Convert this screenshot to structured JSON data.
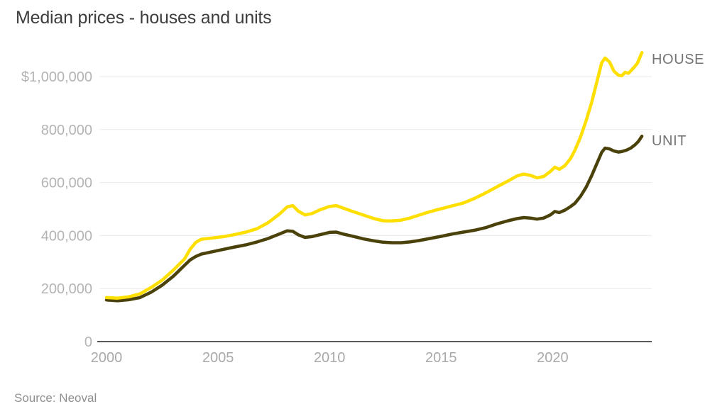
{
  "title": "Median prices - houses and units",
  "source": "Source: Neoval",
  "colors": {
    "house_line": "#ffdf00",
    "unit_line": "#4a420a",
    "grid": "#e9e9e9",
    "axis": "#59595b",
    "y_tick_label": "#b4b4b4",
    "x_tick_label": "#a9a9a9",
    "series_label": "#747474",
    "title_text": "#3d3d3d",
    "source_text": "#8f8f8f",
    "background": "#ffffff"
  },
  "chart_data": {
    "type": "line",
    "title": "Median prices - houses and units",
    "xlabel": "",
    "ylabel": "",
    "grid": "horizontal",
    "legend_position": "right-end-labels",
    "xlim": [
      1999.8,
      2024.5
    ],
    "ylim": [
      0,
      1100000
    ],
    "x_ticks": [
      2000,
      2005,
      2010,
      2015,
      2020
    ],
    "y_ticks": [
      {
        "value": 0,
        "label": "0"
      },
      {
        "value": 200000,
        "label": "200,000"
      },
      {
        "value": 400000,
        "label": "400,000"
      },
      {
        "value": 600000,
        "label": "600,000"
      },
      {
        "value": 800000,
        "label": "800,000"
      },
      {
        "value": 1000000,
        "label": "$1,000,000"
      }
    ],
    "series": [
      {
        "name": "HOUSE",
        "color": "#ffdf00",
        "points": [
          [
            2000.0,
            166000
          ],
          [
            2000.5,
            164000
          ],
          [
            2001.0,
            169000
          ],
          [
            2001.5,
            180000
          ],
          [
            2002.0,
            204000
          ],
          [
            2002.5,
            232000
          ],
          [
            2003.0,
            270000
          ],
          [
            2003.5,
            312000
          ],
          [
            2003.75,
            348000
          ],
          [
            2004.0,
            374000
          ],
          [
            2004.25,
            386000
          ],
          [
            2004.75,
            391000
          ],
          [
            2005.25,
            396000
          ],
          [
            2005.75,
            404000
          ],
          [
            2006.25,
            413000
          ],
          [
            2006.75,
            426000
          ],
          [
            2007.25,
            449000
          ],
          [
            2007.75,
            481000
          ],
          [
            2008.1,
            508000
          ],
          [
            2008.35,
            513000
          ],
          [
            2008.6,
            492000
          ],
          [
            2008.9,
            478000
          ],
          [
            2009.2,
            483000
          ],
          [
            2009.6,
            498000
          ],
          [
            2010.0,
            510000
          ],
          [
            2010.3,
            513000
          ],
          [
            2010.6,
            504000
          ],
          [
            2011.0,
            492000
          ],
          [
            2011.5,
            478000
          ],
          [
            2012.0,
            464000
          ],
          [
            2012.4,
            456000
          ],
          [
            2012.8,
            455000
          ],
          [
            2013.2,
            458000
          ],
          [
            2013.6,
            466000
          ],
          [
            2014.0,
            477000
          ],
          [
            2014.5,
            490000
          ],
          [
            2015.0,
            501000
          ],
          [
            2015.5,
            512000
          ],
          [
            2016.0,
            523000
          ],
          [
            2016.5,
            540000
          ],
          [
            2017.0,
            561000
          ],
          [
            2017.5,
            584000
          ],
          [
            2018.0,
            606000
          ],
          [
            2018.4,
            625000
          ],
          [
            2018.7,
            632000
          ],
          [
            2019.0,
            627000
          ],
          [
            2019.3,
            618000
          ],
          [
            2019.6,
            623000
          ],
          [
            2019.9,
            642000
          ],
          [
            2020.1,
            658000
          ],
          [
            2020.3,
            650000
          ],
          [
            2020.55,
            664000
          ],
          [
            2020.8,
            690000
          ],
          [
            2021.0,
            722000
          ],
          [
            2021.25,
            772000
          ],
          [
            2021.5,
            833000
          ],
          [
            2021.75,
            903000
          ],
          [
            2022.0,
            985000
          ],
          [
            2022.2,
            1052000
          ],
          [
            2022.35,
            1070000
          ],
          [
            2022.55,
            1055000
          ],
          [
            2022.75,
            1020000
          ],
          [
            2022.95,
            1005000
          ],
          [
            2023.1,
            1003000
          ],
          [
            2023.25,
            1016000
          ],
          [
            2023.4,
            1012000
          ],
          [
            2023.6,
            1030000
          ],
          [
            2023.8,
            1050000
          ],
          [
            2024.0,
            1090000
          ]
        ]
      },
      {
        "name": "UNIT",
        "color": "#4a420a",
        "points": [
          [
            2000.0,
            157000
          ],
          [
            2000.5,
            154000
          ],
          [
            2001.0,
            158000
          ],
          [
            2001.5,
            166000
          ],
          [
            2002.0,
            186000
          ],
          [
            2002.5,
            213000
          ],
          [
            2003.0,
            247000
          ],
          [
            2003.5,
            288000
          ],
          [
            2003.75,
            308000
          ],
          [
            2004.0,
            321000
          ],
          [
            2004.25,
            330000
          ],
          [
            2004.75,
            339000
          ],
          [
            2005.25,
            348000
          ],
          [
            2005.75,
            357000
          ],
          [
            2006.25,
            365000
          ],
          [
            2006.75,
            376000
          ],
          [
            2007.25,
            389000
          ],
          [
            2007.75,
            406000
          ],
          [
            2008.1,
            418000
          ],
          [
            2008.35,
            416000
          ],
          [
            2008.6,
            403000
          ],
          [
            2008.9,
            393000
          ],
          [
            2009.2,
            396000
          ],
          [
            2009.6,
            404000
          ],
          [
            2010.0,
            412000
          ],
          [
            2010.3,
            413000
          ],
          [
            2010.6,
            406000
          ],
          [
            2011.0,
            398000
          ],
          [
            2011.5,
            388000
          ],
          [
            2012.0,
            380000
          ],
          [
            2012.4,
            375000
          ],
          [
            2012.8,
            373000
          ],
          [
            2013.2,
            373000
          ],
          [
            2013.6,
            376000
          ],
          [
            2014.0,
            381000
          ],
          [
            2014.5,
            389000
          ],
          [
            2015.0,
            397000
          ],
          [
            2015.5,
            406000
          ],
          [
            2016.0,
            413000
          ],
          [
            2016.5,
            420000
          ],
          [
            2017.0,
            430000
          ],
          [
            2017.5,
            444000
          ],
          [
            2018.0,
            456000
          ],
          [
            2018.4,
            464000
          ],
          [
            2018.7,
            468000
          ],
          [
            2019.0,
            466000
          ],
          [
            2019.3,
            462000
          ],
          [
            2019.6,
            466000
          ],
          [
            2019.9,
            478000
          ],
          [
            2020.1,
            491000
          ],
          [
            2020.3,
            487000
          ],
          [
            2020.55,
            496000
          ],
          [
            2020.8,
            509000
          ],
          [
            2021.0,
            522000
          ],
          [
            2021.25,
            548000
          ],
          [
            2021.5,
            582000
          ],
          [
            2021.75,
            626000
          ],
          [
            2022.0,
            675000
          ],
          [
            2022.2,
            714000
          ],
          [
            2022.35,
            730000
          ],
          [
            2022.55,
            727000
          ],
          [
            2022.75,
            719000
          ],
          [
            2022.95,
            715000
          ],
          [
            2023.1,
            717000
          ],
          [
            2023.3,
            722000
          ],
          [
            2023.5,
            730000
          ],
          [
            2023.7,
            743000
          ],
          [
            2023.85,
            756000
          ],
          [
            2024.0,
            775000
          ]
        ]
      }
    ]
  }
}
